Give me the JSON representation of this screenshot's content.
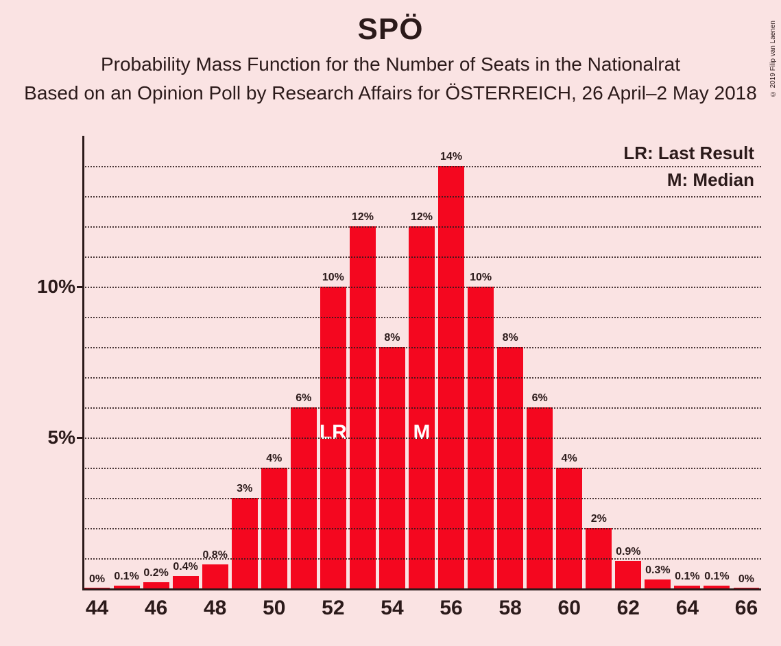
{
  "title": "SPÖ",
  "subtitle1": "Probability Mass Function for the Number of Seats in the Nationalrat",
  "subtitle2": "Based on an Opinion Poll by Research Affairs for ÖSTERREICH, 26 April–2 May 2018",
  "copyright": "© 2019 Filip van Laenen",
  "legend": {
    "lr": "LR: Last Result",
    "m": "M: Median"
  },
  "chart": {
    "type": "bar",
    "bar_color": "#f4071f",
    "background_color": "#fae3e3",
    "axis_color": "#2b1a1a",
    "grid_color": "#2b1a1a",
    "text_color": "#2b1a1a",
    "annotation_color": "#ffffff",
    "title_fontsize": 44,
    "subtitle_fontsize": 28,
    "axis_label_fontsize": 30,
    "bar_label_fontsize": 16,
    "ylim": [
      0,
      15
    ],
    "y_major_ticks": [
      5,
      10
    ],
    "y_minor_step": 1,
    "x_categories": [
      44,
      45,
      46,
      47,
      48,
      49,
      50,
      51,
      52,
      53,
      54,
      55,
      56,
      57,
      58,
      59,
      60,
      61,
      62,
      63,
      64,
      65,
      66
    ],
    "x_tick_labels": [
      44,
      46,
      48,
      50,
      52,
      54,
      56,
      58,
      60,
      62,
      64,
      66
    ],
    "bar_width_ratio": 0.88,
    "values": [
      0,
      0.1,
      0.2,
      0.4,
      0.8,
      3,
      4,
      6,
      10,
      12,
      8,
      12,
      14,
      10,
      8,
      6,
      4,
      2,
      0.9,
      0.3,
      0.1,
      0.1,
      0
    ],
    "value_labels": [
      "0%",
      "0.1%",
      "0.2%",
      "0.4%",
      "0.8%",
      "3%",
      "4%",
      "6%",
      "10%",
      "12%",
      "8%",
      "12%",
      "14%",
      "10%",
      "8%",
      "6%",
      "4%",
      "2%",
      "0.9%",
      "0.3%",
      "0.1%",
      "0.1%",
      "0%"
    ],
    "annotations": [
      {
        "seat": 52,
        "text": "LR"
      },
      {
        "seat": 55,
        "text": "M"
      }
    ]
  }
}
